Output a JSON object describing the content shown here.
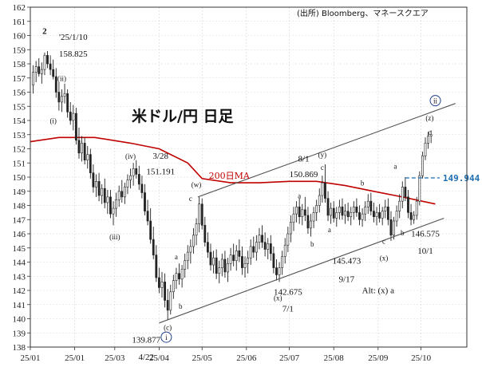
{
  "chart_data": {
    "type": "candlestick",
    "title": "米ドル/円 日足",
    "source": "(出所) Bloomberg、マネースクエア",
    "ylim": [
      138,
      162
    ],
    "yticks": [
      138,
      139,
      140,
      141,
      142,
      143,
      144,
      145,
      146,
      147,
      148,
      149,
      150,
      151,
      152,
      153,
      154,
      155,
      156,
      157,
      158,
      159,
      160,
      161,
      162
    ],
    "x_ticks": [
      "25/01",
      "25/01",
      "25/03",
      "25/04",
      "25/05",
      "25/06",
      "25/07",
      "25/08",
      "25/09",
      "25/10"
    ],
    "x_tick_days": [
      0,
      31,
      59,
      90,
      120,
      151,
      181,
      212,
      243,
      273
    ],
    "xlim_days": [
      0,
      305
    ],
    "moving_average": {
      "label": "200日MA",
      "color": "#c00000",
      "points": [
        [
          0,
          152.5
        ],
        [
          20,
          152.8
        ],
        [
          45,
          152.8
        ],
        [
          70,
          152.4
        ],
        [
          90,
          152.0
        ],
        [
          110,
          151.0
        ],
        [
          120,
          149.9
        ],
        [
          140,
          149.6
        ],
        [
          160,
          149.6
        ],
        [
          181,
          149.7
        ],
        [
          200,
          149.7
        ],
        [
          220,
          149.4
        ],
        [
          240,
          149.0
        ],
        [
          260,
          148.6
        ],
        [
          283,
          148.1
        ]
      ]
    },
    "ohlc": [
      [
        2,
        156.5,
        157.9,
        155.9,
        157.4
      ],
      [
        4,
        157.4,
        158.2,
        156.7,
        157.8
      ],
      [
        6,
        157.8,
        158.4,
        157.1,
        157.3
      ],
      [
        8,
        157.3,
        158.1,
        156.6,
        157.6
      ],
      [
        10,
        157.6,
        158.8,
        157.2,
        158.6
      ],
      [
        12,
        158.6,
        158.9,
        157.7,
        158.0
      ],
      [
        14,
        158.0,
        158.6,
        157.2,
        157.6
      ],
      [
        16,
        157.6,
        158.3,
        156.9,
        157.1
      ],
      [
        18,
        157.1,
        157.7,
        155.6,
        156.0
      ],
      [
        20,
        156.0,
        156.7,
        154.7,
        155.3
      ],
      [
        22,
        155.3,
        156.2,
        154.6,
        155.7
      ],
      [
        24,
        155.7,
        156.6,
        155.2,
        155.9
      ],
      [
        26,
        155.9,
        156.2,
        154.2,
        154.6
      ],
      [
        28,
        154.6,
        155.3,
        153.7,
        154.0
      ],
      [
        30,
        154.0,
        155.1,
        153.3,
        154.5
      ],
      [
        32,
        154.5,
        154.9,
        152.3,
        152.6
      ],
      [
        34,
        152.6,
        153.5,
        151.3,
        151.7
      ],
      [
        36,
        151.7,
        152.9,
        151.1,
        152.4
      ],
      [
        38,
        152.4,
        152.8,
        150.9,
        151.2
      ],
      [
        40,
        151.2,
        152.2,
        150.6,
        151.6
      ],
      [
        42,
        151.6,
        152.0,
        149.9,
        150.3
      ],
      [
        44,
        150.3,
        150.9,
        148.9,
        149.3
      ],
      [
        46,
        149.3,
        150.2,
        148.6,
        149.7
      ],
      [
        48,
        149.7,
        150.3,
        148.3,
        148.7
      ],
      [
        50,
        148.7,
        149.5,
        148.1,
        149.2
      ],
      [
        52,
        149.2,
        149.9,
        147.8,
        148.2
      ],
      [
        54,
        148.2,
        149.1,
        147.4,
        148.6
      ],
      [
        56,
        148.6,
        149.1,
        147.1,
        147.4
      ],
      [
        58,
        147.4,
        148.3,
        146.6,
        147.8
      ],
      [
        60,
        147.8,
        148.9,
        147.2,
        148.4
      ],
      [
        62,
        148.4,
        149.4,
        147.9,
        149.0
      ],
      [
        64,
        149.0,
        149.8,
        148.2,
        148.6
      ],
      [
        66,
        148.6,
        149.6,
        148.1,
        149.3
      ],
      [
        68,
        149.3,
        150.2,
        148.8,
        149.8
      ],
      [
        70,
        149.8,
        150.6,
        149.2,
        150.1
      ],
      [
        72,
        150.1,
        151.0,
        149.4,
        150.6
      ],
      [
        74,
        150.6,
        151.2,
        149.9,
        150.2
      ],
      [
        76,
        150.2,
        150.8,
        149.1,
        149.5
      ],
      [
        78,
        149.5,
        150.1,
        148.5,
        148.9
      ],
      [
        80,
        148.9,
        149.5,
        147.3,
        147.6
      ],
      [
        82,
        147.6,
        148.4,
        146.6,
        146.9
      ],
      [
        84,
        146.9,
        147.8,
        145.3,
        145.6
      ],
      [
        86,
        145.6,
        146.5,
        144.2,
        144.5
      ],
      [
        88,
        144.5,
        145.2,
        142.6,
        142.9
      ],
      [
        90,
        142.9,
        143.6,
        141.8,
        142.2
      ],
      [
        92,
        142.2,
        143.3,
        141.5,
        142.6
      ],
      [
        94,
        142.6,
        143.2,
        140.8,
        141.3
      ],
      [
        96,
        141.3,
        142.1,
        139.9,
        140.6
      ],
      [
        98,
        140.6,
        142.4,
        140.3,
        141.9
      ],
      [
        100,
        141.9,
        143.1,
        141.4,
        142.7
      ],
      [
        102,
        142.7,
        143.6,
        142.1,
        143.2
      ],
      [
        104,
        143.2,
        143.9,
        142.4,
        142.8
      ],
      [
        106,
        142.8,
        143.8,
        142.2,
        143.5
      ],
      [
        108,
        143.5,
        144.6,
        142.9,
        144.1
      ],
      [
        110,
        144.1,
        145.2,
        143.5,
        144.7
      ],
      [
        112,
        144.7,
        145.6,
        143.9,
        145.1
      ],
      [
        114,
        145.1,
        146.4,
        144.6,
        145.9
      ],
      [
        116,
        145.9,
        147.1,
        145.2,
        146.7
      ],
      [
        118,
        146.7,
        148.6,
        146.1,
        148.1
      ],
      [
        120,
        148.1,
        148.5,
        146.3,
        146.6
      ],
      [
        122,
        146.6,
        147.2,
        145.1,
        145.4
      ],
      [
        124,
        145.4,
        146.1,
        144.3,
        144.7
      ],
      [
        126,
        144.7,
        145.3,
        143.4,
        143.8
      ],
      [
        128,
        143.8,
        144.8,
        143.2,
        144.3
      ],
      [
        130,
        144.3,
        144.9,
        142.8,
        143.2
      ],
      [
        132,
        143.2,
        144.1,
        142.5,
        143.6
      ],
      [
        134,
        143.6,
        144.6,
        143.0,
        144.2
      ],
      [
        136,
        144.2,
        144.8,
        142.9,
        143.3
      ],
      [
        138,
        143.3,
        144.3,
        142.6,
        143.9
      ],
      [
        140,
        143.9,
        145.0,
        143.4,
        144.5
      ],
      [
        142,
        144.5,
        145.3,
        143.7,
        144.1
      ],
      [
        144,
        144.1,
        145.2,
        143.4,
        144.8
      ],
      [
        146,
        144.8,
        145.6,
        144.0,
        144.4
      ],
      [
        148,
        144.4,
        145.1,
        143.1,
        143.6
      ],
      [
        150,
        143.6,
        144.4,
        142.9,
        143.9
      ],
      [
        152,
        143.9,
        144.8,
        143.2,
        144.3
      ],
      [
        154,
        144.3,
        145.6,
        143.8,
        145.1
      ],
      [
        156,
        145.1,
        145.8,
        144.3,
        144.7
      ],
      [
        158,
        144.7,
        145.9,
        144.1,
        145.4
      ],
      [
        160,
        145.4,
        146.4,
        144.9,
        145.9
      ],
      [
        162,
        145.9,
        146.6,
        145.0,
        145.4
      ],
      [
        164,
        145.4,
        146.1,
        144.4,
        144.9
      ],
      [
        166,
        144.9,
        145.7,
        144.2,
        145.3
      ],
      [
        168,
        145.3,
        145.9,
        144.1,
        144.6
      ],
      [
        170,
        144.6,
        145.1,
        143.2,
        143.6
      ],
      [
        172,
        143.6,
        144.2,
        142.7,
        143.1
      ],
      [
        174,
        143.1,
        144.0,
        142.6,
        143.6
      ],
      [
        176,
        143.6,
        144.8,
        143.1,
        144.4
      ],
      [
        178,
        144.4,
        145.7,
        143.9,
        145.2
      ],
      [
        180,
        145.2,
        146.5,
        144.7,
        146.0
      ],
      [
        182,
        146.0,
        147.3,
        145.4,
        146.8
      ],
      [
        184,
        146.8,
        147.9,
        146.2,
        147.4
      ],
      [
        186,
        147.4,
        148.3,
        146.8,
        147.9
      ],
      [
        188,
        147.9,
        148.5,
        146.7,
        147.2
      ],
      [
        190,
        147.2,
        148.1,
        146.6,
        147.7
      ],
      [
        192,
        147.7,
        148.6,
        146.9,
        147.3
      ],
      [
        194,
        147.3,
        147.9,
        146.0,
        146.4
      ],
      [
        196,
        146.4,
        147.4,
        145.8,
        146.9
      ],
      [
        198,
        146.9,
        147.9,
        146.4,
        147.5
      ],
      [
        200,
        147.5,
        148.4,
        146.9,
        148.0
      ],
      [
        202,
        148.0,
        149.2,
        147.5,
        148.7
      ],
      [
        204,
        148.7,
        150.1,
        148.2,
        149.6
      ],
      [
        206,
        149.6,
        150.9,
        148.2,
        148.5
      ],
      [
        208,
        148.5,
        149.0,
        146.9,
        147.3
      ],
      [
        210,
        147.3,
        148.2,
        146.7,
        147.8
      ],
      [
        212,
        147.8,
        148.3,
        146.8,
        147.1
      ],
      [
        214,
        147.1,
        147.9,
        146.5,
        147.5
      ],
      [
        216,
        147.5,
        148.4,
        147.0,
        147.9
      ],
      [
        218,
        147.9,
        148.5,
        147.0,
        147.3
      ],
      [
        220,
        147.3,
        148.1,
        146.7,
        147.6
      ],
      [
        222,
        147.6,
        148.2,
        146.9,
        147.2
      ],
      [
        224,
        147.2,
        147.9,
        146.6,
        147.5
      ],
      [
        226,
        147.5,
        148.3,
        147.0,
        147.9
      ],
      [
        228,
        147.9,
        148.5,
        147.2,
        147.5
      ],
      [
        230,
        147.5,
        148.0,
        146.6,
        147.0
      ],
      [
        232,
        147.0,
        147.8,
        146.5,
        147.4
      ],
      [
        234,
        147.4,
        148.3,
        146.9,
        147.9
      ],
      [
        236,
        147.9,
        148.8,
        147.4,
        148.3
      ],
      [
        238,
        148.3,
        148.9,
        147.3,
        147.6
      ],
      [
        240,
        147.6,
        148.2,
        146.8,
        147.2
      ],
      [
        242,
        147.2,
        147.9,
        146.6,
        147.5
      ],
      [
        244,
        147.5,
        148.1,
        146.8,
        147.1
      ],
      [
        246,
        147.1,
        147.9,
        146.6,
        147.6
      ],
      [
        248,
        147.6,
        148.4,
        147.1,
        147.9
      ],
      [
        250,
        147.9,
        148.5,
        146.6,
        147.0
      ],
      [
        252,
        147.0,
        147.6,
        145.5,
        145.9
      ],
      [
        254,
        145.9,
        147.2,
        145.6,
        146.9
      ],
      [
        256,
        146.9,
        148.0,
        146.5,
        147.6
      ],
      [
        258,
        147.6,
        148.8,
        147.1,
        148.3
      ],
      [
        260,
        148.3,
        149.7,
        147.8,
        149.3
      ],
      [
        262,
        149.3,
        150.0,
        148.3,
        148.6
      ],
      [
        264,
        148.6,
        149.1,
        147.1,
        147.5
      ],
      [
        266,
        147.5,
        148.1,
        146.6,
        147.0
      ],
      [
        268,
        147.0,
        147.6,
        146.7,
        147.3
      ],
      [
        270,
        147.3,
        148.6,
        147.0,
        148.3
      ],
      [
        272,
        148.3,
        150.4,
        148.0,
        150.1
      ],
      [
        274,
        150.1,
        151.8,
        149.9,
        151.5
      ],
      [
        276,
        151.5,
        152.8,
        151.2,
        152.4
      ],
      [
        278,
        152.4,
        153.2,
        152.0,
        152.9
      ],
      [
        280,
        152.9,
        153.3,
        152.4,
        153.0
      ]
    ],
    "trend_lines": [
      {
        "name": "upper-channel-line",
        "points": [
          [
            117,
            148.6
          ],
          [
            297,
            155.2
          ]
        ],
        "color": "#555555"
      },
      {
        "name": "lower-channel-line",
        "points": [
          [
            90,
            139.7
          ],
          [
            289,
            147.1
          ]
        ],
        "color": "#555555"
      }
    ],
    "level_line": {
      "value": 149.944,
      "label": "149.944",
      "x_range": [
        262,
        286
      ],
      "color": "#1f6fb2"
    },
    "annotations": [
      {
        "text": "2",
        "x": 10,
        "y": 160.1,
        "kind": "big"
      },
      {
        "text": "'25/1/10",
        "x": 30,
        "y": 159.7
      },
      {
        "text": "158.825",
        "x": 30,
        "y": 158.5
      },
      {
        "text": "(ii)",
        "x": 22,
        "y": 156.8,
        "kind": "wave"
      },
      {
        "text": "(i)",
        "x": 16,
        "y": 153.8,
        "kind": "wave"
      },
      {
        "text": "(iv)",
        "x": 70,
        "y": 151.3,
        "kind": "wave"
      },
      {
        "text": "3/28",
        "x": 91,
        "y": 151.3
      },
      {
        "text": "151.191",
        "x": 91,
        "y": 150.2
      },
      {
        "text": "(iii)",
        "x": 59,
        "y": 145.6,
        "kind": "wave"
      },
      {
        "text": "(w)",
        "x": 116,
        "y": 149.3,
        "kind": "wave"
      },
      {
        "text": "c",
        "x": 112,
        "y": 148.3,
        "kind": "wave"
      },
      {
        "text": "a",
        "x": 102,
        "y": 144.2,
        "kind": "wave"
      },
      {
        "text": "b",
        "x": 105,
        "y": 140.7,
        "kind": "wave"
      },
      {
        "text": "(c)",
        "x": 96,
        "y": 139.2,
        "kind": "wave"
      },
      {
        "text": "139.877",
        "x": 81,
        "y": 138.3
      },
      {
        "text": "4/22",
        "x": 81,
        "y": 137.1
      },
      {
        "text": "200日MA",
        "x": 139,
        "y": 149.9,
        "kind": "ma"
      },
      {
        "text": "8/1",
        "x": 191,
        "y": 151.1
      },
      {
        "text": "150.869",
        "x": 191,
        "y": 150.0
      },
      {
        "text": "(y)",
        "x": 204,
        "y": 151.4,
        "kind": "wave"
      },
      {
        "text": "c",
        "x": 204,
        "y": 150.5,
        "kind": "wave"
      },
      {
        "text": "a",
        "x": 188,
        "y": 148.5,
        "kind": "wave"
      },
      {
        "text": "b",
        "x": 197,
        "y": 145.1,
        "kind": "wave"
      },
      {
        "text": "a",
        "x": 209,
        "y": 146.1,
        "kind": "wave"
      },
      {
        "text": "(x)",
        "x": 173,
        "y": 141.3,
        "kind": "wave"
      },
      {
        "text": "142.675",
        "x": 180,
        "y": 141.7
      },
      {
        "text": "7/1",
        "x": 180,
        "y": 140.5
      },
      {
        "text": "b",
        "x": 232,
        "y": 149.4,
        "kind": "wave"
      },
      {
        "text": "145.473",
        "x": 221,
        "y": 143.9
      },
      {
        "text": "9/17",
        "x": 221,
        "y": 142.6
      },
      {
        "text": "c",
        "x": 247,
        "y": 145.3,
        "kind": "wave"
      },
      {
        "text": "(x)",
        "x": 247,
        "y": 144.1,
        "kind": "wave"
      },
      {
        "text": "a",
        "x": 255,
        "y": 150.6,
        "kind": "wave"
      },
      {
        "text": "b",
        "x": 260,
        "y": 145.9,
        "kind": "wave"
      },
      {
        "text": "146.575",
        "x": 276,
        "y": 145.8
      },
      {
        "text": "10/1",
        "x": 276,
        "y": 144.6
      },
      {
        "text": "(z)",
        "x": 279,
        "y": 154.0,
        "kind": "wave"
      },
      {
        "text": "c",
        "x": 279,
        "y": 153.0,
        "kind": "wave"
      },
      {
        "text": "Alt:  (x)  a",
        "x": 243,
        "y": 141.8
      }
    ],
    "circled_labels": [
      {
        "text": "ii",
        "x": 283,
        "y": 155.4
      },
      {
        "text": "i",
        "x": 95,
        "y": 138.7
      }
    ]
  }
}
